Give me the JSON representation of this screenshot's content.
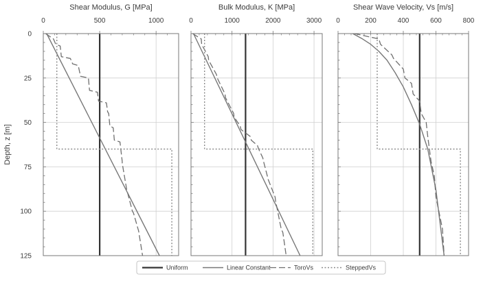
{
  "figure": {
    "y_axis_label": "Depth, z [m]",
    "legend": [
      "Uniform",
      "Linear Constant",
      "ToroVs",
      "SteppedVs"
    ],
    "colors": {
      "uniform": "#333333",
      "linear": "#777777",
      "toro": "#6e6e6e",
      "stepped": "#8a8a8a",
      "grid": "#cfcfcf",
      "frame": "#777777"
    }
  },
  "chart_data": [
    {
      "type": "line",
      "title": "Shear Modulus, G [MPa]",
      "xlim": [
        0,
        1200
      ],
      "xticks": [
        0,
        500,
        1000
      ],
      "ylim": [
        0,
        125
      ],
      "yticks": [
        0,
        25,
        50,
        75,
        100,
        125
      ],
      "y_inverted": true,
      "grid": true,
      "series": [
        {
          "name": "Uniform",
          "style": "solid-bold",
          "x": [
            500,
            500
          ],
          "y": [
            0,
            125
          ]
        },
        {
          "name": "Linear Constant",
          "style": "solid",
          "x": [
            30,
            1030
          ],
          "y": [
            0,
            125
          ]
        },
        {
          "name": "ToroVs",
          "style": "dashed",
          "x": [
            20,
            90,
            110,
            150,
            160,
            240,
            260,
            310,
            330,
            400,
            410,
            480,
            490,
            560,
            570,
            580,
            590,
            620,
            630,
            680,
            700,
            700,
            740,
            745,
            790,
            800,
            840,
            845,
            880
          ],
          "y": [
            0,
            3,
            6,
            7,
            13,
            14,
            17,
            18,
            24,
            25,
            32,
            33,
            38,
            39,
            44,
            45,
            52,
            53,
            60,
            61,
            72,
            73,
            88,
            89,
            100,
            101,
            110,
            111,
            125
          ]
        },
        {
          "name": "SteppedVs",
          "style": "dotted",
          "x": [
            120,
            120,
            1140,
            1140
          ],
          "y": [
            0,
            65,
            65,
            125
          ]
        }
      ]
    },
    {
      "type": "line",
      "title": "Bulk Modulus, K [MPa]",
      "xlim": [
        0,
        3200
      ],
      "xticks": [
        0,
        1000,
        2000,
        3000
      ],
      "ylim": [
        0,
        125
      ],
      "yticks": [
        0,
        25,
        50,
        75,
        100,
        125
      ],
      "y_inverted": true,
      "grid": true,
      "series": [
        {
          "name": "Uniform",
          "style": "solid-bold",
          "x": [
            1330,
            1330
          ],
          "y": [
            0,
            125
          ]
        },
        {
          "name": "Linear Constant",
          "style": "solid",
          "x": [
            60,
            2660
          ],
          "y": [
            0,
            125
          ]
        },
        {
          "name": "ToroVs",
          "style": "dashed",
          "x": [
            40,
            250,
            260,
            420,
            430,
            620,
            640,
            830,
            840,
            1040,
            1050,
            1200,
            1220,
            1450,
            1470,
            1620,
            1650,
            1750,
            1770,
            1860,
            1880,
            2050,
            2060,
            2200,
            2240,
            2320
          ],
          "y": [
            0,
            3,
            6,
            13,
            15,
            23,
            25,
            34,
            36,
            45,
            47,
            52,
            54,
            58,
            60,
            63,
            65,
            70,
            72,
            80,
            82,
            92,
            94,
            110,
            112,
            125
          ]
        },
        {
          "name": "SteppedVs",
          "style": "dotted",
          "x": [
            330,
            330,
            2970,
            2970
          ],
          "y": [
            0,
            65,
            65,
            125
          ]
        }
      ]
    },
    {
      "type": "line",
      "title": "Shear Wave Velocity, Vs [m/s]",
      "xlim": [
        0,
        800
      ],
      "xticks": [
        0,
        200,
        400,
        600,
        800
      ],
      "ylim": [
        0,
        125
      ],
      "yticks": [
        0,
        25,
        50,
        75,
        100,
        125
      ],
      "y_inverted": true,
      "grid": true,
      "series": [
        {
          "name": "Uniform",
          "style": "solid-bold",
          "x": [
            500,
            500
          ],
          "y": [
            0,
            125
          ]
        },
        {
          "name": "Linear Constant",
          "style": "solid",
          "x": [
            90,
            150,
            200,
            250,
            300,
            350,
            400,
            450,
            500,
            550,
            600,
            650
          ],
          "y": [
            0,
            3,
            6,
            10,
            15,
            22,
            30,
            40,
            51,
            65,
            88,
            125
          ]
        },
        {
          "name": "ToroVs",
          "style": "dashed",
          "x": [
            100,
            250,
            260,
            330,
            340,
            400,
            410,
            450,
            460,
            500,
            510,
            540,
            550,
            560,
            570,
            590,
            600,
            640,
            650
          ],
          "y": [
            0,
            3,
            6,
            12,
            14,
            20,
            25,
            28,
            34,
            38,
            45,
            50,
            58,
            65,
            72,
            80,
            92,
            110,
            125
          ]
        },
        {
          "name": "SteppedVs",
          "style": "dotted",
          "x": [
            240,
            240,
            750,
            750
          ],
          "y": [
            0,
            65,
            65,
            125
          ]
        }
      ]
    }
  ]
}
